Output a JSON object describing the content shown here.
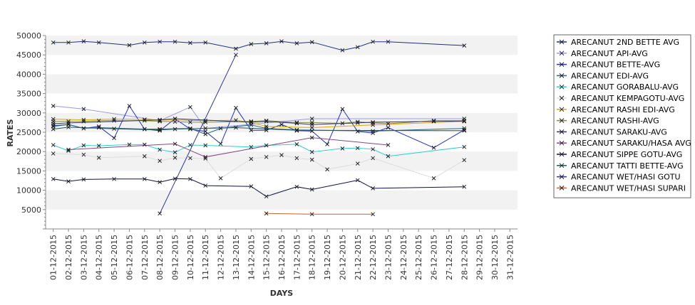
{
  "chart_data": {
    "type": "line",
    "title": "",
    "xlabel": "DAYS",
    "ylabel": "RATES",
    "ylim": [
      0,
      50000
    ],
    "yticks": [
      5000,
      10000,
      15000,
      20000,
      25000,
      30000,
      35000,
      40000,
      45000,
      50000
    ],
    "grid": "alternating horizontal bands",
    "legend_position": "right",
    "categories": [
      "01-12-2015",
      "02-12-2015",
      "03-12-2015",
      "04-12-2015",
      "05-12-2015",
      "06-12-2015",
      "07-12-2015",
      "08-12-2015",
      "09-12-2015",
      "10-12-2015",
      "11-12-2015",
      "12-12-2015",
      "13-12-2015",
      "14-12-2015",
      "15-12-2015",
      "16-12-2015",
      "17-12-2015",
      "18-12-2015",
      "19-12-2015",
      "20-12-2015",
      "21-12-2015",
      "22-12-2015",
      "23-12-2015",
      "24-12-2015",
      "25-12-2015",
      "26-12-2015",
      "27-12-2015",
      "28-12-2015",
      "29-12-2015",
      "30-12-2015",
      "31-12-2015"
    ],
    "series": [
      {
        "name": "ARECANUT 2ND BETTE AVG",
        "color": "#1f2f7f",
        "values": [
          48200,
          48200,
          48500,
          48200,
          null,
          47500,
          48200,
          48400,
          48400,
          48100,
          48200,
          null,
          46600,
          47800,
          48000,
          48500,
          48000,
          48300,
          null,
          46200,
          47000,
          48400,
          48400,
          null,
          null,
          null,
          null,
          47400,
          null,
          null,
          null
        ]
      },
      {
        "name": "ARECANUT API-AVG",
        "color": "#9999ee",
        "values": [
          31800,
          null,
          31000,
          null,
          null,
          null,
          null,
          28000,
          null,
          31500,
          26000,
          null,
          null,
          null,
          null,
          null,
          null,
          28500,
          null,
          null,
          null,
          null,
          null,
          null,
          null,
          null,
          null,
          28500,
          null,
          null,
          null
        ]
      },
      {
        "name": "ARECANUT BETTE-AVG",
        "color": "#2233bb",
        "values": [
          26700,
          27000,
          26000,
          26500,
          23500,
          31800,
          25800,
          25400,
          28500,
          25800,
          25200,
          22000,
          31300,
          25500,
          25500,
          27000,
          25400,
          25300,
          21900,
          31000,
          25200,
          24800,
          26200,
          null,
          null,
          21000,
          null,
          25600,
          null,
          null,
          null
        ]
      },
      {
        "name": "ARECANUT EDI-AVG",
        "color": "#226688",
        "values": [
          26500,
          27000,
          26000,
          26200,
          null,
          null,
          25800,
          25800,
          null,
          26000,
          24500,
          26000,
          null,
          26900,
          26000,
          null,
          25600,
          null,
          null,
          null,
          null,
          25300,
          null,
          null,
          null,
          null,
          null,
          26000,
          null,
          null,
          null
        ]
      },
      {
        "name": "ARECANUT GORABALU-AVG",
        "color": "#33cccc",
        "values": [
          21700,
          20200,
          21600,
          21500,
          null,
          21800,
          21800,
          20500,
          19800,
          21700,
          21600,
          null,
          null,
          21200,
          21600,
          null,
          21900,
          19900,
          null,
          20800,
          20900,
          20600,
          18800,
          null,
          null,
          null,
          null,
          21200,
          null,
          null,
          null
        ]
      },
      {
        "name": "ARECANUT KEMPAGOTU-AVG",
        "color": "#dddddd",
        "values": [
          19500,
          null,
          19200,
          18400,
          null,
          null,
          18800,
          17600,
          18400,
          18300,
          18200,
          13100,
          null,
          18100,
          18600,
          19100,
          18300,
          17900,
          15400,
          null,
          16900,
          18300,
          null,
          null,
          null,
          13100,
          null,
          17800,
          null,
          null,
          null
        ]
      },
      {
        "name": "ARECANUT RASHI EDI-AVG",
        "color": "#ddaa00",
        "values": [
          28400,
          null,
          28200,
          null,
          28400,
          null,
          28300,
          28200,
          null,
          null,
          28000,
          null,
          28100,
          27500,
          26500,
          null,
          null,
          26200,
          null,
          null,
          null,
          26900,
          null,
          null,
          null,
          null,
          null,
          27800,
          null,
          null,
          null
        ]
      },
      {
        "name": "ARECANUT RASHI-AVG",
        "color": "#888844",
        "values": [
          27800,
          27800,
          27800,
          28000,
          28000,
          null,
          28000,
          27800,
          27700,
          27600,
          27600,
          null,
          null,
          27800,
          28000,
          null,
          27500,
          27500,
          null,
          27300,
          27700,
          27400,
          27200,
          null,
          null,
          28000,
          null,
          28000,
          null,
          null,
          null
        ]
      },
      {
        "name": "ARECANUT SARAKU-AVG",
        "color": "#333366",
        "values": [
          27200,
          27400,
          null,
          null,
          null,
          null,
          null,
          28200,
          28500,
          null,
          null,
          null,
          null,
          27600,
          27800,
          null,
          27300,
          27000,
          null,
          null,
          27400,
          27600,
          null,
          null,
          null,
          27800,
          null,
          27900,
          null,
          null,
          null
        ]
      },
      {
        "name": "ARECANUT SARAKU/HASA AVG",
        "color": "#884488",
        "values": [
          null,
          20500,
          null,
          null,
          null,
          null,
          null,
          null,
          22000,
          null,
          18600,
          null,
          null,
          null,
          null,
          null,
          null,
          23600,
          null,
          null,
          null,
          null,
          21700,
          null,
          null,
          null,
          null,
          null,
          null,
          null,
          null
        ]
      },
      {
        "name": "ARECANUT SIPPE GOTU-AVG",
        "color": "#111144",
        "values": [
          12900,
          12300,
          12800,
          null,
          12900,
          null,
          12900,
          12100,
          13000,
          12900,
          11200,
          null,
          null,
          11000,
          8400,
          null,
          10900,
          10200,
          null,
          null,
          12600,
          10500,
          null,
          null,
          null,
          null,
          null,
          10900,
          null,
          null,
          null
        ]
      },
      {
        "name": "ARECANUT TATTI BETTE-AVG",
        "color": "#225555",
        "values": [
          25800,
          26300,
          null,
          null,
          25900,
          null,
          null,
          25600,
          25800,
          null,
          null,
          null,
          26200,
          null,
          null,
          null,
          25500,
          null,
          null,
          null,
          null,
          null,
          null,
          null,
          null,
          null,
          null,
          25400,
          null,
          null,
          null
        ]
      },
      {
        "name": "ARECANUT WET/HASI GOTU",
        "color": "#333399",
        "values": [
          null,
          null,
          null,
          null,
          null,
          null,
          null,
          4000,
          null,
          null,
          null,
          null,
          45000,
          null,
          null,
          null,
          null,
          null,
          null,
          null,
          null,
          null,
          null,
          null,
          null,
          null,
          null,
          null,
          null,
          null,
          null
        ]
      },
      {
        "name": "ARECANUT WET/HASI SUPARI",
        "color": "#bb6633",
        "values": [
          null,
          null,
          null,
          null,
          null,
          null,
          null,
          null,
          null,
          null,
          null,
          null,
          null,
          null,
          4000,
          null,
          null,
          3800,
          null,
          null,
          null,
          3800,
          null,
          null,
          null,
          null,
          null,
          null,
          null,
          null,
          null
        ]
      }
    ]
  }
}
